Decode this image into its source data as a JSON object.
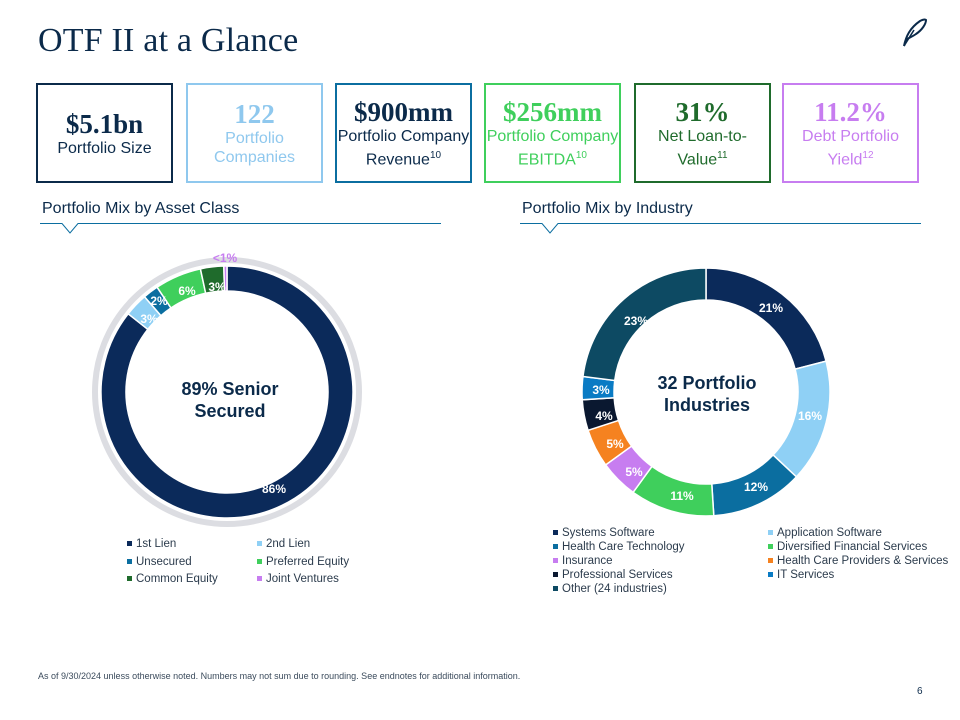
{
  "title": "OTF II at a Glance",
  "kpis": [
    {
      "value": "$5.1bn",
      "label": "Portfolio Size",
      "sup": "",
      "color": "#0b2a4a",
      "value_color": "#0b2a4a",
      "label_color": "#0b2a4a"
    },
    {
      "value": "122",
      "label": "Portfolio Companies",
      "sup": "",
      "color": "#8fc8ee",
      "value_color": "#8fc8ee",
      "label_color": "#8fc8ee"
    },
    {
      "value": "$900mm",
      "label": "Portfolio Company Revenue",
      "sup": "10",
      "color": "#0b6ea0",
      "value_color": "#0b2a4a",
      "label_color": "#0b2a4a"
    },
    {
      "value": "$256mm",
      "label": "Portfolio Company EBITDA",
      "sup": "10",
      "color": "#3fcf5c",
      "value_color": "#3fcf5c",
      "label_color": "#3fcf5c"
    },
    {
      "value": "31%",
      "label": "Net Loan-to-Value",
      "sup": "11",
      "color": "#1f6b2c",
      "value_color": "#1f6b2c",
      "label_color": "#1f6b2c"
    },
    {
      "value": "11.2%",
      "label": "Debt Portfolio Yield",
      "sup": "12",
      "color": "#c77df0",
      "value_color": "#c77df0",
      "label_color": "#c77df0"
    }
  ],
  "sections": {
    "asset": "Portfolio Mix by Asset Class",
    "industry": "Portfolio Mix by Industry"
  },
  "chart_data": [
    {
      "type": "pie",
      "title": "Portfolio Mix by Asset Class",
      "center_text": "89% Senior Secured",
      "series": [
        {
          "values": [
            86,
            3,
            2,
            6,
            3,
            0.4
          ]
        }
      ],
      "categories": [
        "1st Lien",
        "2nd Lien",
        "Unsecured",
        "Preferred Equity",
        "Common Equity",
        "Joint Ventures"
      ],
      "labels": [
        "86%",
        "3%",
        "2%",
        "6%",
        "3%",
        "<1%"
      ],
      "colors": [
        "#0b2a5a",
        "#8fd0f5",
        "#0b6ea0",
        "#3fcf5c",
        "#1f6b2c",
        "#c77df0"
      ]
    },
    {
      "type": "pie",
      "title": "Portfolio Mix by Industry",
      "center_text": "32 Portfolio Industries",
      "series": [
        {
          "values": [
            21,
            16,
            12,
            11,
            5,
            5,
            4,
            3,
            23
          ]
        }
      ],
      "categories": [
        "Systems Software",
        "Application Software",
        "Health Care Technology",
        "Diversified Financial Services",
        "Insurance",
        "Health Care Providers & Services",
        "Professional Services",
        "IT Services",
        "Other (24 industries)"
      ],
      "labels": [
        "21%",
        "16%",
        "12%",
        "11%",
        "5%",
        "5%",
        "4%",
        "3%",
        "23%"
      ],
      "colors": [
        "#0b2a5a",
        "#8fd0f5",
        "#0b6ea0",
        "#3fcf5c",
        "#c77df0",
        "#f58220",
        "#0a1830",
        "#0a7bc4",
        "#0d4a63"
      ]
    }
  ],
  "footnote": "As of 9/30/2024 unless otherwise noted. Numbers may not sum due to rounding. See endnotes for additional information.",
  "page_number": "6"
}
